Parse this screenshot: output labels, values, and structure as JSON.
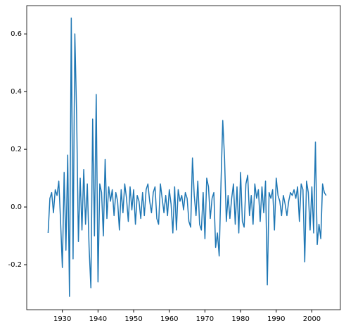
{
  "chart_data": {
    "type": "line",
    "x": [
      1926.0,
      1926.5,
      1927.0,
      1927.5,
      1928.0,
      1928.5,
      1929.0,
      1929.5,
      1930.0,
      1930.5,
      1931.0,
      1931.5,
      1932.0,
      1932.5,
      1933.0,
      1933.5,
      1934.0,
      1934.5,
      1935.0,
      1935.5,
      1936.0,
      1936.5,
      1937.0,
      1937.5,
      1938.0,
      1938.5,
      1939.0,
      1939.5,
      1940.0,
      1940.5,
      1941.0,
      1941.5,
      1942.0,
      1942.5,
      1943.0,
      1943.5,
      1944.0,
      1944.5,
      1945.0,
      1945.5,
      1946.0,
      1946.5,
      1947.0,
      1947.5,
      1948.0,
      1948.5,
      1949.0,
      1949.5,
      1950.0,
      1950.5,
      1951.0,
      1951.5,
      1952.0,
      1952.5,
      1953.0,
      1953.5,
      1954.0,
      1954.5,
      1955.0,
      1955.5,
      1956.0,
      1956.5,
      1957.0,
      1957.5,
      1958.0,
      1958.5,
      1959.0,
      1959.5,
      1960.0,
      1960.5,
      1961.0,
      1961.5,
      1962.0,
      1962.5,
      1963.0,
      1963.5,
      1964.0,
      1964.5,
      1965.0,
      1965.5,
      1966.0,
      1966.5,
      1967.0,
      1967.5,
      1968.0,
      1968.5,
      1969.0,
      1969.5,
      1970.0,
      1970.5,
      1971.0,
      1971.5,
      1972.0,
      1972.5,
      1973.0,
      1973.5,
      1974.0,
      1974.5,
      1975.0,
      1975.5,
      1976.0,
      1976.5,
      1977.0,
      1977.5,
      1978.0,
      1978.5,
      1979.0,
      1979.5,
      1980.0,
      1980.5,
      1981.0,
      1981.5,
      1982.0,
      1982.5,
      1983.0,
      1983.5,
      1984.0,
      1984.5,
      1985.0,
      1985.5,
      1986.0,
      1986.5,
      1987.0,
      1987.5,
      1988.0,
      1988.5,
      1989.0,
      1989.5,
      1990.0,
      1990.5,
      1991.0,
      1991.5,
      1992.0,
      1992.5,
      1993.0,
      1993.5,
      1994.0,
      1994.5,
      1995.0,
      1995.5,
      1996.0,
      1996.5,
      1997.0,
      1997.5,
      1998.0,
      1998.5,
      1999.0,
      1999.5,
      2000.0,
      2000.5,
      2001.0,
      2001.5,
      2002.0,
      2002.5,
      2003.0,
      2003.5,
      2004.0
    ],
    "series": [
      {
        "color": "#1f77b4",
        "values": [
          -0.09,
          0.03,
          0.05,
          -0.02,
          0.06,
          0.04,
          0.09,
          -0.05,
          -0.21,
          0.12,
          -0.15,
          0.18,
          -0.31,
          0.655,
          -0.18,
          0.6,
          0.32,
          -0.12,
          0.1,
          -0.08,
          0.13,
          -0.06,
          0.08,
          -0.14,
          -0.28,
          0.305,
          -0.1,
          0.39,
          -0.26,
          0.08,
          0.05,
          -0.1,
          0.165,
          -0.04,
          0.07,
          0.02,
          0.06,
          -0.03,
          0.05,
          0.02,
          -0.08,
          0.06,
          -0.02,
          0.08,
          0.03,
          -0.05,
          0.07,
          -0.01,
          0.06,
          -0.06,
          0.04,
          0.02,
          -0.04,
          0.05,
          -0.03,
          0.06,
          0.08,
          0.02,
          -0.02,
          0.05,
          0.07,
          -0.04,
          -0.06,
          0.08,
          0.03,
          -0.02,
          0.04,
          -0.03,
          0.06,
          0.01,
          -0.09,
          0.07,
          -0.08,
          0.06,
          0.02,
          0.04,
          -0.01,
          0.05,
          0.03,
          -0.05,
          -0.07,
          0.17,
          0.04,
          -0.03,
          0.09,
          -0.06,
          -0.08,
          0.05,
          -0.11,
          0.1,
          0.07,
          -0.04,
          0.03,
          0.05,
          -0.14,
          -0.09,
          -0.17,
          0.08,
          0.3,
          0.17,
          -0.05,
          0.04,
          -0.04,
          0.03,
          0.08,
          -0.06,
          0.07,
          -0.09,
          0.12,
          -0.05,
          -0.07,
          0.08,
          0.11,
          -0.03,
          0.04,
          -0.06,
          0.08,
          0.03,
          0.06,
          -0.05,
          0.07,
          -0.02,
          0.09,
          -0.27,
          0.05,
          0.03,
          0.06,
          -0.08,
          0.1,
          0.04,
          0.02,
          -0.03,
          0.04,
          0.01,
          -0.03,
          0.02,
          0.05,
          0.04,
          0.06,
          0.03,
          0.07,
          -0.05,
          0.08,
          0.06,
          -0.19,
          0.09,
          0.05,
          -0.08,
          0.07,
          -0.09,
          0.225,
          -0.13,
          -0.06,
          -0.11,
          0.08,
          0.05,
          0.04
        ]
      }
    ],
    "xlim": [
      1920,
      2008
    ],
    "xticks": [
      1930,
      1940,
      1950,
      1960,
      1970,
      1980,
      1990,
      2000
    ],
    "ylim": [
      -0.356,
      0.698
    ],
    "yticks": [
      -0.2,
      {
        "value": 0,
        "label": "0.0"
      },
      0.2,
      0.4,
      0.6
    ]
  }
}
